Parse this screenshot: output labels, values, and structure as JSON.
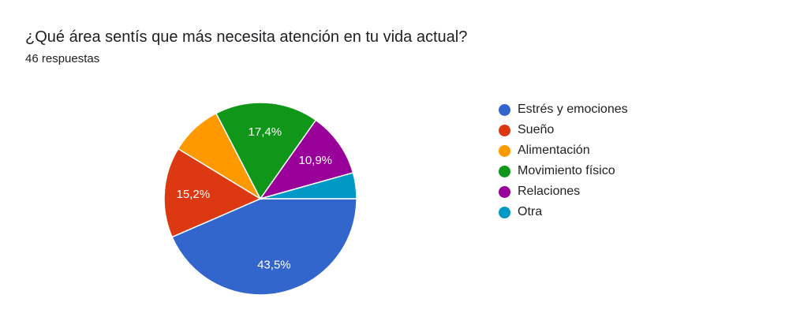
{
  "header": {
    "title": "¿Qué área sentís que más necesita atención en tu vida actual?",
    "responses": "46 respuestas"
  },
  "chart_data": {
    "type": "pie",
    "categories": [
      "Estrés y emociones",
      "Sueño",
      "Alimentación",
      "Movimiento físico",
      "Relaciones",
      "Otra"
    ],
    "values": [
      20,
      7,
      4,
      8,
      5,
      2
    ],
    "labels": [
      "43,5%",
      "15,2%",
      "",
      "17,4%",
      "10,9%",
      ""
    ],
    "colors": [
      "#3366cc",
      "#dc3912",
      "#ff9900",
      "#109618",
      "#990099",
      "#0099c6"
    ],
    "legend_position": "right",
    "start_angle_deg": 90
  }
}
